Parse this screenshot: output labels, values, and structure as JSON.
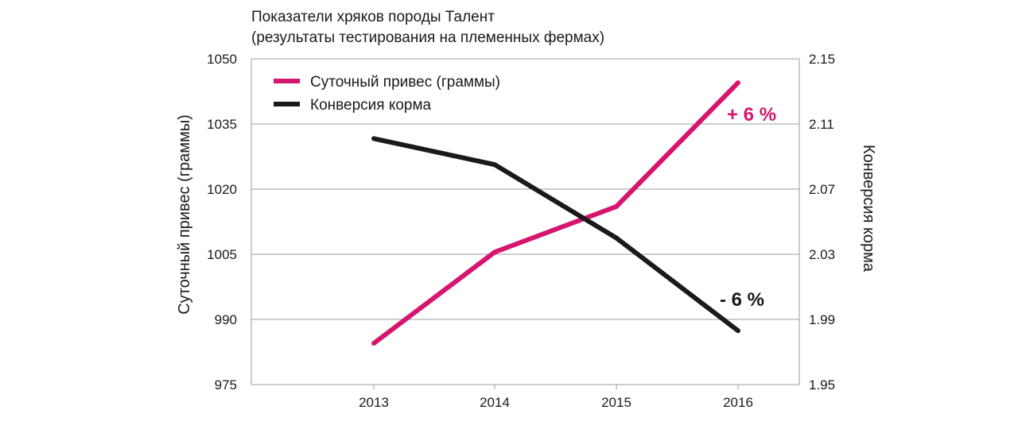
{
  "chart_data": {
    "type": "line",
    "title": "Показатели хряков породы Талент",
    "subtitle": "(результаты тестирования на племенных фермах)",
    "categories": [
      "2013",
      "2014",
      "2015",
      "2016"
    ],
    "ylabel": "Суточный привес (граммы)",
    "y2label": "Конверсия корма",
    "ylim": [
      975,
      1050
    ],
    "yticks": [
      "1050",
      "1035",
      "1020",
      "1005",
      "990",
      "975"
    ],
    "y2lim": [
      1.95,
      2.15
    ],
    "y2ticks": [
      "2.15",
      "2.11",
      "2.07",
      "2.03",
      "1.99",
      "1.95"
    ],
    "grid": true,
    "legend_position": "top-left",
    "series": [
      {
        "name": "Суточный привес (граммы)",
        "axis": "left",
        "color": "#d6156f",
        "values": [
          984.5,
          1005.5,
          1016,
          1044.5
        ]
      },
      {
        "name": "Конверсия корма",
        "axis": "right",
        "color": "#1a1a1a",
        "values": [
          2.101,
          2.085,
          2.04,
          1.983
        ]
      }
    ],
    "annotations": [
      {
        "text": "+ 6 %",
        "series": 0,
        "color": "#d6156f"
      },
      {
        "text": "- 6 %",
        "series": 1,
        "color": "#1a1a1a"
      }
    ]
  }
}
